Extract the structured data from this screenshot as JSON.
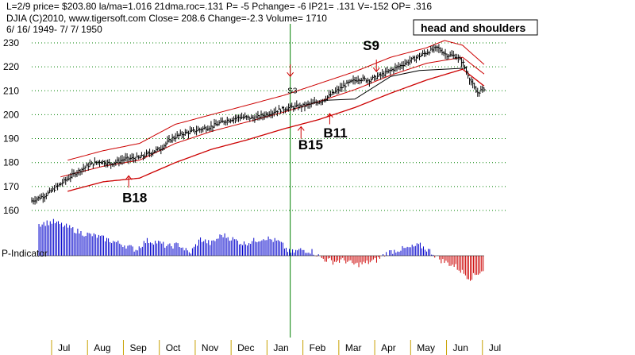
{
  "header": {
    "line1": "L=2/9  price= $203.80  la/ma=1.016 21dma.roc=.131 P= -5 Pchange= -6 IP21= .131 V=-152 OP= .316",
    "line2": "DJIA   (C)2010, www.tigersoft.com    Close=  208.6  Change=-2.3 Volume= 1710",
    "line3": "6/ 16/ 1949- 7/ 7/ 1950"
  },
  "annotation_box": "head and shoulders",
  "indicator_label": "P-Indicator",
  "colors": {
    "price": "#000000",
    "band": "#cc0000",
    "signal_line": "#008000",
    "indicator_pos": "#0000cc",
    "indicator_neg": "#cc0000",
    "grid": "#008000",
    "arrow": "#cc0000",
    "month_tick": "#c8a000"
  },
  "chart_data": {
    "type": "line",
    "title": "DJIA 6/16/1949 - 7/7/1950",
    "ylim": [
      157,
      232
    ],
    "yticks": [
      "160",
      "170",
      "180",
      "190",
      "200",
      "210",
      "220",
      "230"
    ],
    "ytick_values": [
      160,
      170,
      180,
      190,
      200,
      210,
      220,
      230
    ],
    "months": [
      "Jul",
      "Aug",
      "Sep",
      "Oct",
      "Nov",
      "Dec",
      "Jan",
      "Feb",
      "Mar",
      "Apr",
      "May",
      "Jun",
      "Jul"
    ],
    "time_range": [
      0,
      13
    ],
    "price_anchors": [
      [
        0.0,
        164
      ],
      [
        0.4,
        166.5
      ],
      [
        0.8,
        171
      ],
      [
        1.2,
        175.5
      ],
      [
        1.6,
        179
      ],
      [
        1.9,
        180.5
      ],
      [
        2.2,
        179.5
      ],
      [
        2.6,
        181.5
      ],
      [
        3.0,
        182
      ],
      [
        3.3,
        184
      ],
      [
        3.6,
        186
      ],
      [
        3.9,
        190
      ],
      [
        4.2,
        192
      ],
      [
        4.6,
        193.5
      ],
      [
        5.0,
        195
      ],
      [
        5.4,
        197.5
      ],
      [
        5.8,
        199
      ],
      [
        6.2,
        198.5
      ],
      [
        6.5,
        200
      ],
      [
        6.9,
        202
      ],
      [
        7.2,
        203
      ],
      [
        7.5,
        203.5
      ],
      [
        7.8,
        204.5
      ],
      [
        8.1,
        206
      ],
      [
        8.4,
        209
      ],
      [
        8.8,
        213
      ],
      [
        9.1,
        215
      ],
      [
        9.4,
        214.5
      ],
      [
        9.8,
        217
      ],
      [
        10.2,
        220
      ],
      [
        10.6,
        223
      ],
      [
        11.0,
        226
      ],
      [
        11.3,
        228
      ],
      [
        11.55,
        225
      ],
      [
        11.8,
        224.5
      ],
      [
        12.0,
        222
      ],
      [
        12.2,
        215
      ],
      [
        12.4,
        209
      ],
      [
        12.6,
        211
      ]
    ],
    "upper_band_anchors": [
      [
        1.0,
        181
      ],
      [
        2.0,
        185
      ],
      [
        3.0,
        188
      ],
      [
        4.0,
        196
      ],
      [
        5.0,
        200
      ],
      [
        6.0,
        204
      ],
      [
        7.0,
        208
      ],
      [
        8.0,
        213
      ],
      [
        9.0,
        218
      ],
      [
        10.0,
        224
      ],
      [
        11.0,
        228
      ],
      [
        11.5,
        231
      ],
      [
        12.0,
        229
      ],
      [
        12.6,
        221
      ]
    ],
    "lower_band_anchors": [
      [
        1.0,
        168
      ],
      [
        2.0,
        172
      ],
      [
        3.0,
        173.5
      ],
      [
        4.0,
        180
      ],
      [
        5.0,
        185.5
      ],
      [
        6.0,
        189.5
      ],
      [
        7.0,
        194
      ],
      [
        8.0,
        198
      ],
      [
        9.0,
        203
      ],
      [
        10.0,
        209
      ],
      [
        11.0,
        214.5
      ],
      [
        12.0,
        219
      ],
      [
        12.6,
        212
      ]
    ],
    "mid_band_anchors": [
      [
        0.8,
        174
      ],
      [
        2.0,
        178.5
      ],
      [
        3.0,
        181
      ],
      [
        4.0,
        188
      ],
      [
        5.0,
        193
      ],
      [
        6.0,
        197
      ],
      [
        7.0,
        201
      ],
      [
        8.0,
        205.5
      ],
      [
        9.0,
        210.5
      ],
      [
        10.0,
        216.5
      ],
      [
        11.0,
        221.5
      ],
      [
        12.0,
        224
      ],
      [
        12.6,
        217
      ]
    ],
    "neckline": [
      [
        8.2,
        206
      ],
      [
        9.0,
        206.5
      ],
      [
        10.0,
        216
      ],
      [
        10.8,
        218.5
      ],
      [
        12.1,
        219.5
      ]
    ],
    "signal_day_x": 7.2,
    "signals": [
      {
        "label": "S9",
        "x": 9.4,
        "y": 227,
        "arrow_x": 9.6,
        "arrow_from": 223,
        "arrow_to": 218,
        "kind": "sell"
      },
      {
        "label": "S3",
        "x": 7.3,
        "y": 209,
        "arrow_x": 7.2,
        "arrow_from": 221,
        "arrow_to": 216,
        "kind": "sell_small"
      },
      {
        "label": "B11",
        "x": 8.3,
        "y": 190.5,
        "arrow_x": 8.3,
        "arrow_from": 196,
        "arrow_to": 200.5,
        "kind": "buy"
      },
      {
        "label": "B15",
        "x": 7.6,
        "y": 185.5,
        "arrow_x": 7.5,
        "arrow_from": 190,
        "arrow_to": 195,
        "kind": "buy"
      },
      {
        "label": "B18",
        "x": 2.7,
        "y": 163.5,
        "arrow_x": 2.7,
        "arrow_from": 169.5,
        "arrow_to": 174.5,
        "kind": "buy"
      }
    ],
    "indicator": {
      "label": "P-Indicator",
      "ylim": [
        -40,
        55
      ],
      "anchors": [
        [
          0.2,
          42
        ],
        [
          0.6,
          45
        ],
        [
          1.0,
          38
        ],
        [
          1.4,
          30
        ],
        [
          1.8,
          26
        ],
        [
          2.2,
          20
        ],
        [
          2.6,
          14
        ],
        [
          2.9,
          8
        ],
        [
          3.2,
          20
        ],
        [
          3.5,
          18
        ],
        [
          3.8,
          12
        ],
        [
          4.1,
          15
        ],
        [
          4.4,
          3
        ],
        [
          4.7,
          22
        ],
        [
          5.0,
          16
        ],
        [
          5.3,
          28
        ],
        [
          5.6,
          22
        ],
        [
          5.9,
          16
        ],
        [
          6.2,
          20
        ],
        [
          6.5,
          24
        ],
        [
          6.9,
          18
        ],
        [
          7.2,
          4
        ],
        [
          7.5,
          8
        ],
        [
          7.8,
          6
        ],
        [
          8.1,
          -4
        ],
        [
          8.4,
          -8
        ],
        [
          8.7,
          -6
        ],
        [
          9.0,
          -12
        ],
        [
          9.3,
          -10
        ],
        [
          9.6,
          -6
        ],
        [
          9.9,
          4
        ],
        [
          10.2,
          8
        ],
        [
          10.5,
          10
        ],
        [
          10.8,
          14
        ],
        [
          11.1,
          6
        ],
        [
          11.4,
          -6
        ],
        [
          11.8,
          -14
        ],
        [
          12.0,
          -22
        ],
        [
          12.2,
          -30
        ],
        [
          12.4,
          -24
        ],
        [
          12.6,
          -18
        ]
      ]
    }
  }
}
